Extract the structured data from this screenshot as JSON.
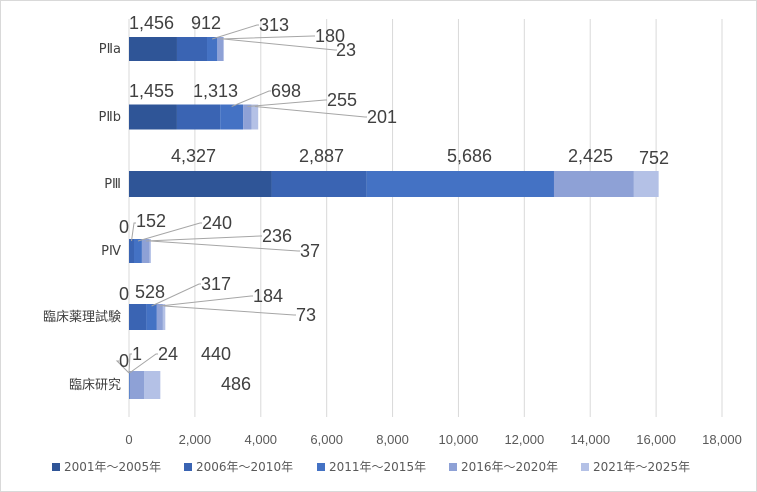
{
  "chart_data": {
    "type": "bar",
    "orientation": "horizontal",
    "stacked": true,
    "categories": [
      "PⅡa",
      "PⅡb",
      "PⅢ",
      "PⅣ",
      "臨床薬理試験",
      "臨床研究"
    ],
    "series": [
      {
        "name": "2001年～2005年",
        "color": "#2f5597",
        "values": [
          1456,
          1455,
          4327,
          0,
          0,
          0
        ]
      },
      {
        "name": "2006年～2010年",
        "color": "#3a64b3",
        "values": [
          912,
          1313,
          2887,
          152,
          528,
          1
        ]
      },
      {
        "name": "2011年～2015年",
        "color": "#4472c4",
        "values": [
          313,
          698,
          5686,
          240,
          317,
          24
        ]
      },
      {
        "name": "2016年～2020年",
        "color": "#8ea1d6",
        "values": [
          180,
          255,
          2425,
          236,
          184,
          440
        ]
      },
      {
        "name": "2021年～2025年",
        "color": "#b4c1e6",
        "values": [
          23,
          201,
          752,
          37,
          73,
          486
        ]
      }
    ],
    "xlim": [
      0,
      18000
    ],
    "xticks": [
      0,
      2000,
      4000,
      6000,
      8000,
      10000,
      12000,
      14000,
      16000,
      18000
    ],
    "xtick_labels": [
      "0",
      "2,000",
      "4,000",
      "6,000",
      "8,000",
      "10,000",
      "12,000",
      "14,000",
      "16,000",
      "18,000"
    ],
    "data_labels": [
      [
        "1,456",
        "912",
        "313",
        "180",
        "23"
      ],
      [
        "1,455",
        "1,313",
        "698",
        "255",
        "201"
      ],
      [
        "4,327",
        "2,887",
        "5,686",
        "2,425",
        "752"
      ],
      [
        "0",
        "152",
        "240",
        "236",
        "37"
      ],
      [
        "0",
        "528",
        "317",
        "184",
        "73"
      ],
      [
        "0",
        "1",
        "24",
        "440",
        "486"
      ]
    ],
    "grid": true,
    "legend_position": "bottom"
  }
}
